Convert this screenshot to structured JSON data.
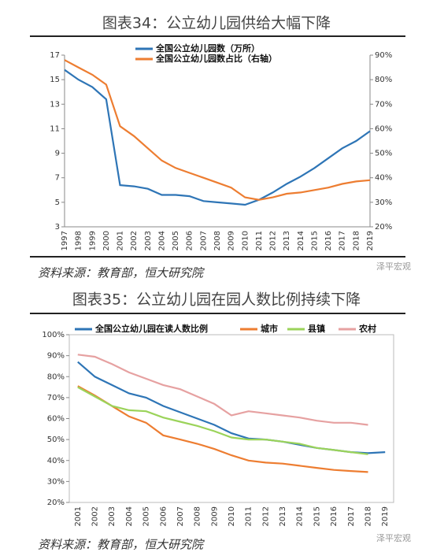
{
  "chart_data": [
    {
      "type": "line",
      "title": "图表34：公立幼儿园供给大幅下降",
      "source": "资料来源：教育部，恒大研究院",
      "watermark": "泽平宏观",
      "categories": [
        "1997",
        "1998",
        "1999",
        "2000",
        "2001",
        "2002",
        "2003",
        "2004",
        "2005",
        "2006",
        "2007",
        "2008",
        "2009",
        "2010",
        "2011",
        "2012",
        "2013",
        "2014",
        "2015",
        "2016",
        "2017",
        "2018",
        "2019"
      ],
      "series": [
        {
          "name": "全国公立幼儿园数（万所）",
          "color": "#2e75b6",
          "values": [
            15.8,
            15.0,
            14.4,
            13.4,
            6.4,
            6.3,
            6.1,
            5.6,
            5.6,
            5.5,
            5.1,
            5.0,
            4.9,
            4.8,
            5.2,
            5.8,
            6.5,
            7.1,
            7.8,
            8.6,
            9.4,
            10.0,
            10.8
          ]
        },
        {
          "name": "全国公立幼儿园数占比（右轴）",
          "color": "#ed7d31",
          "axis": "y2",
          "values": [
            88,
            85,
            82,
            78,
            61,
            57,
            52,
            47,
            44,
            42,
            40,
            38,
            36,
            32,
            31,
            32,
            33.5,
            34,
            35,
            36,
            37.5,
            38.5,
            39
          ]
        }
      ],
      "ylim": [
        3,
        17
      ],
      "yticks": [
        3,
        5,
        7,
        9,
        11,
        13,
        15,
        17
      ],
      "y2lim": [
        20,
        90
      ],
      "y2ticks": [
        {
          "value": 20,
          "label": "20%"
        },
        {
          "value": 30,
          "label": "30%"
        },
        {
          "value": 40,
          "label": "40%"
        },
        {
          "value": 50,
          "label": "50%"
        },
        {
          "value": 60,
          "label": "60%"
        },
        {
          "value": 70,
          "label": "70%"
        },
        {
          "value": 80,
          "label": "80%"
        },
        {
          "value": 90,
          "label": "90%"
        }
      ],
      "grid": false
    },
    {
      "type": "line",
      "title": "图表35：公立幼儿园在园人数比例持续下降",
      "source": "资料来源：教育部，恒大研究院",
      "watermark": "泽平宏观",
      "categories": [
        "2001",
        "2002",
        "2003",
        "2004",
        "2005",
        "2006",
        "2007",
        "2008",
        "2009",
        "2010",
        "2011",
        "2012",
        "2013",
        "2014",
        "2015",
        "2016",
        "2017",
        "2018",
        "2019"
      ],
      "series": [
        {
          "name": "全国公立幼儿园在读人数比例",
          "color": "#2e75b6",
          "values": [
            87,
            80,
            76,
            72,
            70,
            66,
            63,
            60,
            57,
            53,
            50.5,
            50,
            49,
            47.5,
            46,
            45,
            44,
            43.5,
            44
          ]
        },
        {
          "name": "城市",
          "color": "#ed7d31",
          "values": [
            75.5,
            71,
            66,
            61,
            58,
            52,
            50,
            48,
            45.5,
            42.5,
            40,
            39,
            38.5,
            37.5,
            36.5,
            35.5,
            35,
            34.5,
            null
          ]
        },
        {
          "name": "县镇",
          "color": "#9bd35a",
          "values": [
            75,
            70.5,
            66,
            64,
            63.5,
            60.5,
            58.5,
            56.5,
            54,
            51,
            50,
            50,
            49,
            48,
            46,
            45,
            44,
            43,
            null
          ]
        },
        {
          "name": "农村",
          "color": "#e6a1a1",
          "values": [
            90.5,
            89.5,
            86,
            82,
            79,
            76,
            74,
            70.5,
            67,
            61.5,
            63.5,
            62.5,
            61.5,
            60.5,
            59,
            58,
            58,
            57,
            null
          ]
        }
      ],
      "ylim": [
        20,
        100
      ],
      "yticks": [
        {
          "value": 20,
          "label": "20%"
        },
        {
          "value": 30,
          "label": "30%"
        },
        {
          "value": 40,
          "label": "40%"
        },
        {
          "value": 50,
          "label": "50%"
        },
        {
          "value": 60,
          "label": "60%"
        },
        {
          "value": 70,
          "label": "70%"
        },
        {
          "value": 80,
          "label": "80%"
        },
        {
          "value": 90,
          "label": "90%"
        },
        {
          "value": 100,
          "label": "100%"
        }
      ],
      "grid": false
    }
  ]
}
